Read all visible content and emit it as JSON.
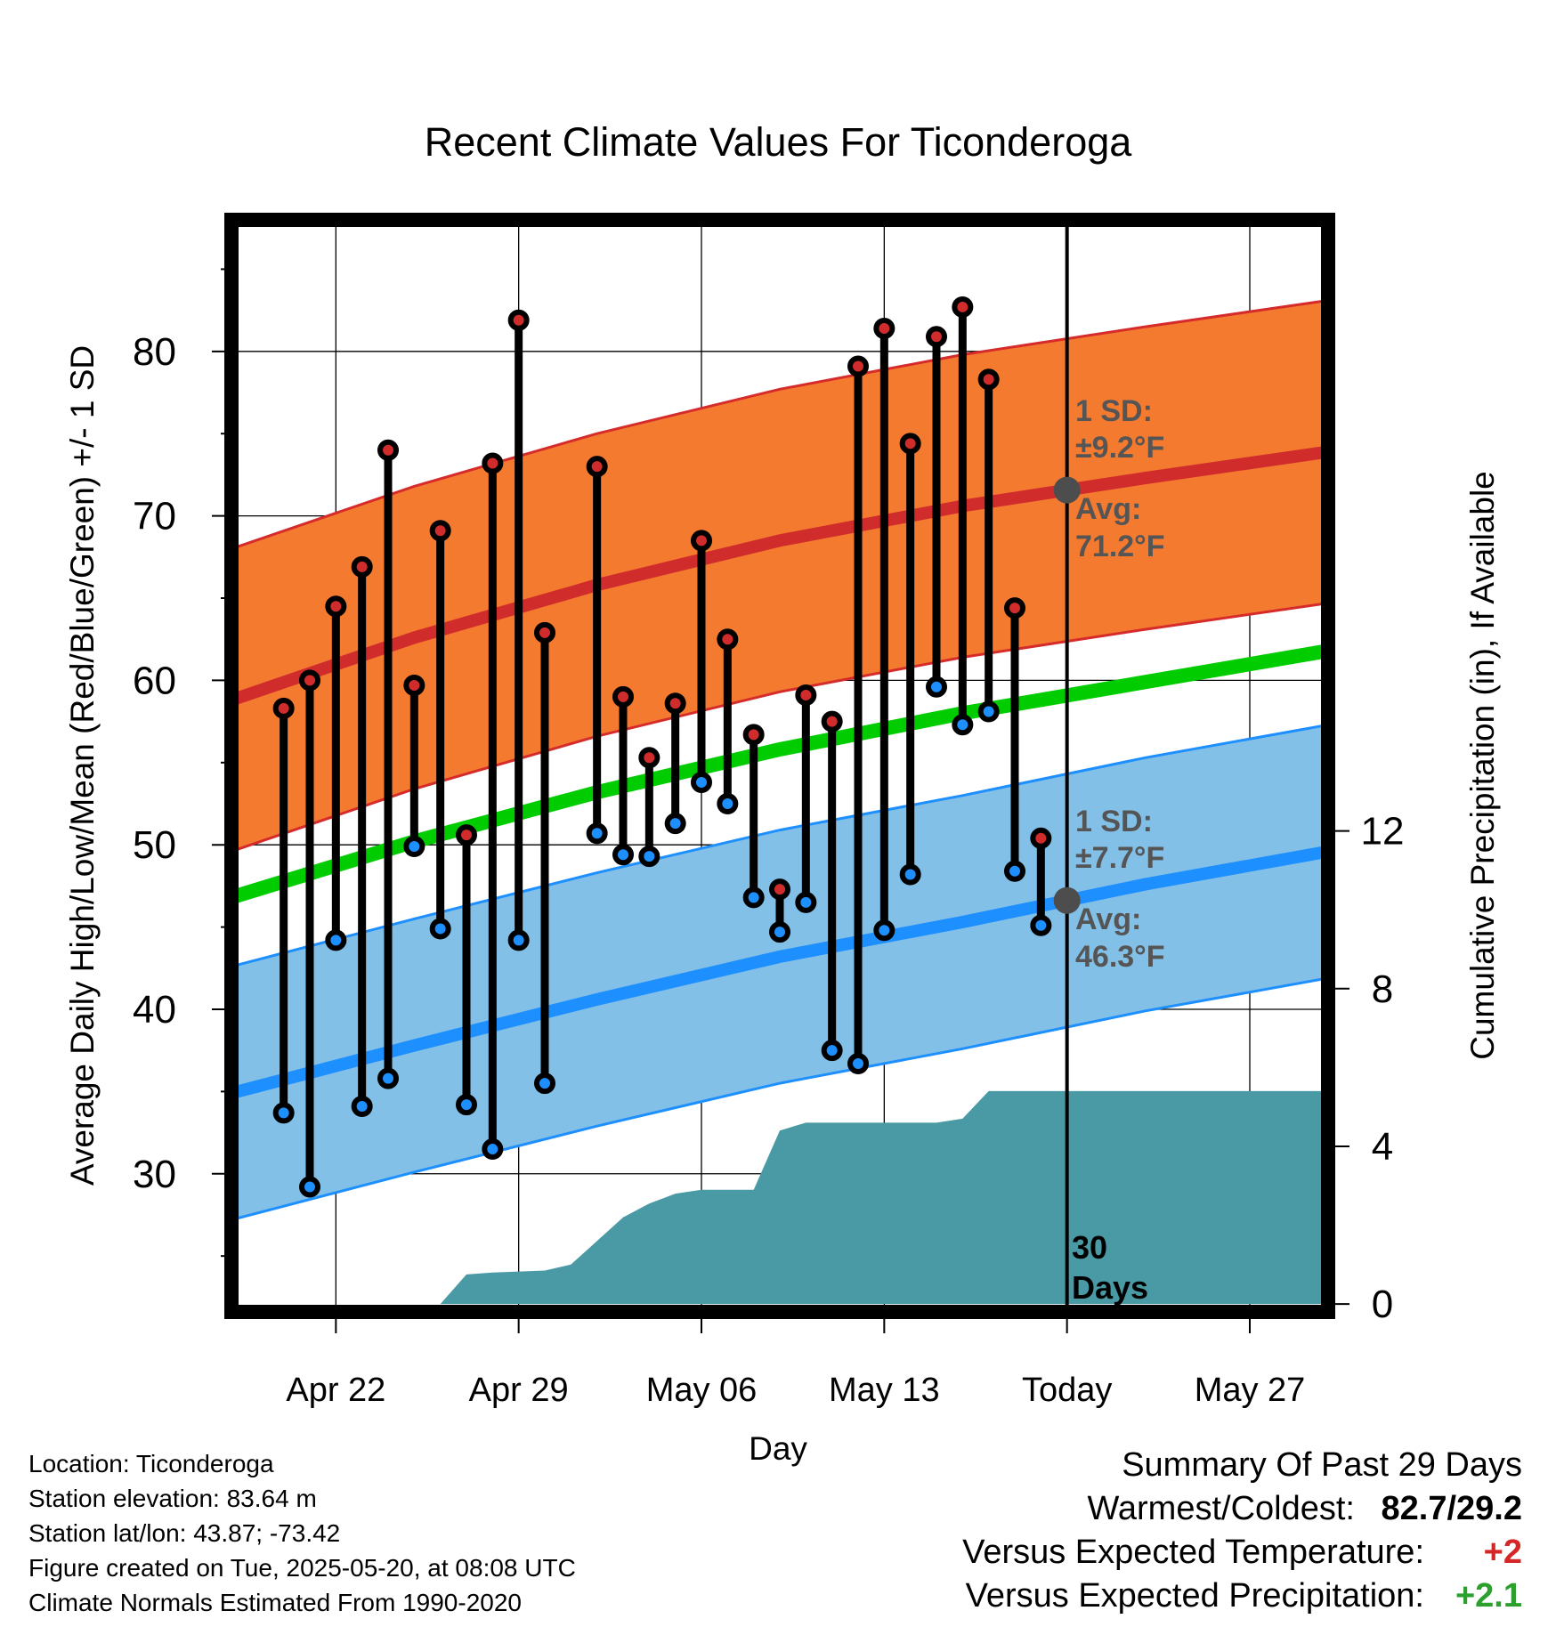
{
  "title": "Recent Climate Values For Ticonderoga",
  "x_label": "Day",
  "y_label_left": "Average Daily High/Low/Mean (Red/Blue/Green) +/- 1 SD",
  "y_label_right": "Cumulative Precipitation (in), If Available",
  "today_label_line1": "30",
  "today_label_line2": "Days",
  "annotations": {
    "high_sd_line1": "1 SD:",
    "high_sd_line2": "±9.2°F",
    "high_avg_line1": "Avg:",
    "high_avg_line2": "71.2°F",
    "low_sd_line1": "1 SD:",
    "low_sd_line2": "±7.7°F",
    "low_avg_line1": "Avg:",
    "low_avg_line2": "46.3°F"
  },
  "footer": {
    "location": "Location: Ticonderoga",
    "elevation": "Station elevation: 83.64 m",
    "latlon": "Station lat/lon: 43.87; -73.42",
    "created": "Figure created on Tue, 2025-05-20, at 08:08 UTC",
    "normals": "Climate Normals Estimated From 1990-2020"
  },
  "summary": {
    "heading": "Summary Of Past 29 Days",
    "warm_cold_label": "Warmest/Coldest:",
    "warm_cold_value": "82.7/29.2",
    "temp_label": "Versus Expected Temperature:",
    "temp_value": "+2",
    "precip_label": "Versus Expected Precipitation:",
    "precip_value": "+2.1"
  },
  "colors": {
    "high_band": "#f47a2f",
    "high_band_edge": "#d62b2b",
    "high_avg": "#d12c2c",
    "low_band": "#82c0e8",
    "low_band_edge": "#1e8fff",
    "low_avg": "#1e8fff",
    "mean_avg": "#00cc00",
    "precip": "#4a9aa5",
    "high_dot": "#d12c2c",
    "low_dot": "#1e8fff",
    "today_dot": "#4d4d4d",
    "annotation_text": "#555555"
  },
  "chart_data": {
    "type": "line",
    "x_ticks": [
      "Apr 22",
      "Apr 29",
      "May 06",
      "May 13",
      "Today",
      "May 27"
    ],
    "x_tick_dates": [
      "2025-04-22",
      "2025-04-29",
      "2025-05-06",
      "2025-05-13",
      "2025-05-20",
      "2025-05-27"
    ],
    "x_range": [
      "2025-04-18",
      "2025-05-30"
    ],
    "today": "2025-05-20",
    "y_left_ticks": [
      30,
      40,
      50,
      60,
      70,
      80
    ],
    "y_left_range": [
      21.6,
      88
    ],
    "y_right_ticks": [
      0,
      4,
      8,
      12
    ],
    "y_right_range": [
      -0.2,
      27.5
    ],
    "grid": true,
    "dates": [
      "2025-04-20",
      "2025-04-21",
      "2025-04-22",
      "2025-04-23",
      "2025-04-24",
      "2025-04-25",
      "2025-04-26",
      "2025-04-27",
      "2025-04-28",
      "2025-04-29",
      "2025-04-30",
      "2025-05-01",
      "2025-05-02",
      "2025-05-03",
      "2025-05-04",
      "2025-05-05",
      "2025-05-06",
      "2025-05-07",
      "2025-05-08",
      "2025-05-09",
      "2025-05-10",
      "2025-05-11",
      "2025-05-12",
      "2025-05-13",
      "2025-05-14",
      "2025-05-15",
      "2025-05-16",
      "2025-05-17",
      "2025-05-18",
      "2025-05-19"
    ],
    "series": [
      {
        "name": "High",
        "values": [
          58.3,
          60.0,
          64.5,
          66.9,
          74.0,
          59.7,
          69.1,
          50.6,
          73.2,
          81.9,
          62.9,
          null,
          73.0,
          59.0,
          55.3,
          58.6,
          68.5,
          62.5,
          56.7,
          47.3,
          59.1,
          57.5,
          79.1,
          81.4,
          74.4,
          80.9,
          82.7,
          78.3,
          64.4,
          50.4
        ]
      },
      {
        "name": "Low",
        "values": [
          33.7,
          29.2,
          44.2,
          34.1,
          35.8,
          49.9,
          44.9,
          34.2,
          31.5,
          44.2,
          35.5,
          null,
          50.7,
          49.4,
          49.3,
          51.3,
          53.8,
          52.5,
          46.8,
          44.7,
          46.5,
          37.5,
          36.7,
          44.8,
          48.2,
          59.6,
          57.3,
          58.1,
          48.4,
          45.1
        ]
      }
    ],
    "normals": {
      "dates": [
        "2025-04-18",
        "2025-04-25",
        "2025-05-02",
        "2025-05-09",
        "2025-05-16",
        "2025-05-23",
        "2025-05-30"
      ],
      "high_avg": [
        58.8,
        62.6,
        65.8,
        68.5,
        70.6,
        72.3,
        73.9
      ],
      "high_sd": 9.2,
      "low_avg": [
        34.9,
        37.8,
        40.6,
        43.2,
        45.3,
        47.6,
        49.6
      ],
      "low_sd": 7.7,
      "mean_avg": [
        46.8,
        50.2,
        53.2,
        55.8,
        58.0,
        59.9,
        61.8
      ]
    },
    "precipitation": {
      "dates": [
        "2025-04-18",
        "2025-04-26",
        "2025-04-27",
        "2025-04-28",
        "2025-04-30",
        "2025-05-01",
        "2025-05-02",
        "2025-05-03",
        "2025-05-04",
        "2025-05-05",
        "2025-05-06",
        "2025-05-07",
        "2025-05-08",
        "2025-05-09",
        "2025-05-10",
        "2025-05-11",
        "2025-05-12",
        "2025-05-13",
        "2025-05-14",
        "2025-05-15",
        "2025-05-16",
        "2025-05-17",
        "2025-05-30"
      ],
      "values": [
        0,
        0,
        0.75,
        0.8,
        0.85,
        1.0,
        1.6,
        2.2,
        2.55,
        2.8,
        2.9,
        2.9,
        2.9,
        4.4,
        4.6,
        4.6,
        4.6,
        4.6,
        4.6,
        4.6,
        4.7,
        5.4,
        5.4
      ]
    }
  }
}
